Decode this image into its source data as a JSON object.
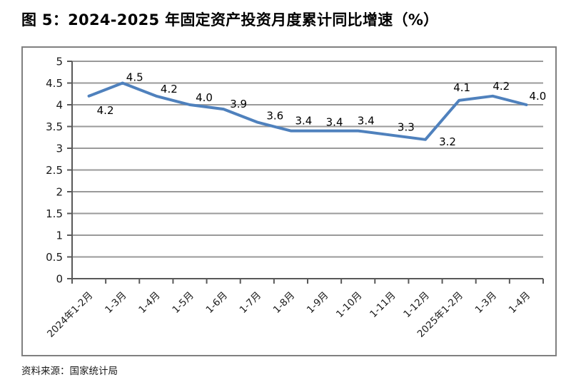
{
  "page": {
    "title": "图 5：2024-2025 年固定资产投资月度累计同比增速（%）",
    "source_note": "资料来源：国家统计局"
  },
  "chart_data": {
    "type": "line",
    "title": "2024-2025 年固定资产投资月度累计同比增速（%）",
    "categories": [
      "2024年1-2月",
      "1-3月",
      "1-4月",
      "1-5月",
      "1-6月",
      "1-7月",
      "1-8月",
      "1-9月",
      "1-10月",
      "1-11月",
      "1-12月",
      "2025年1-2月",
      "1-3月",
      "1-4月"
    ],
    "values": [
      4.2,
      4.5,
      4.2,
      4.0,
      3.9,
      3.6,
      3.4,
      3.4,
      3.4,
      3.3,
      3.2,
      4.1,
      4.2,
      4.0
    ],
    "point_labels": [
      "4.2",
      "4.5",
      "4.2",
      "4.0",
      "3.9",
      "3.6",
      "3.4",
      "3.4",
      "3.4",
      "3.3",
      "3.2",
      "4.1",
      "4.2",
      "4.0"
    ],
    "xlabel": "",
    "ylabel": "",
    "ylim": [
      0,
      5
    ],
    "ytick_step": 0.5,
    "ytick_labels": [
      "0",
      "0.5",
      "1",
      "1.5",
      "2",
      "2.5",
      "3",
      "3.5",
      "4",
      "4.5",
      "5"
    ],
    "grid": true,
    "legend": false,
    "colors": {
      "line": "#4F81BD",
      "gridline": "#9a9a9a",
      "axis": "#595959",
      "tick": "#595959",
      "point_label": "#000000",
      "tick_label": "#1a1a1a"
    }
  }
}
